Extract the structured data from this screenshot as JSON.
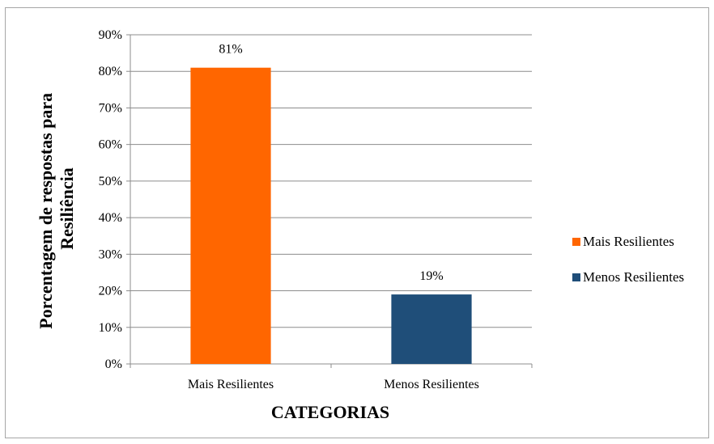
{
  "chart_data": {
    "type": "bar",
    "categories": [
      "Mais Resilientes",
      "Menos Resilientes"
    ],
    "values": [
      81,
      19
    ],
    "data_labels": [
      "81%",
      "19%"
    ],
    "colors": [
      "#ff6600",
      "#1f4e79"
    ],
    "xlabel": "CATEGORIAS",
    "ylabel_lines": [
      "Porcentagem de respostas para",
      "Resiliência"
    ],
    "ylim": [
      0,
      90
    ],
    "ytick_step": 10,
    "ytick_labels": [
      "0%",
      "10%",
      "20%",
      "30%",
      "40%",
      "50%",
      "60%",
      "70%",
      "80%",
      "90%"
    ],
    "grid": true,
    "legend": {
      "placement": "right",
      "entries": [
        {
          "label": "Mais Resilientes",
          "color": "#ff6600"
        },
        {
          "label": "Menos Resilientes",
          "color": "#1f4e79"
        }
      ]
    }
  }
}
